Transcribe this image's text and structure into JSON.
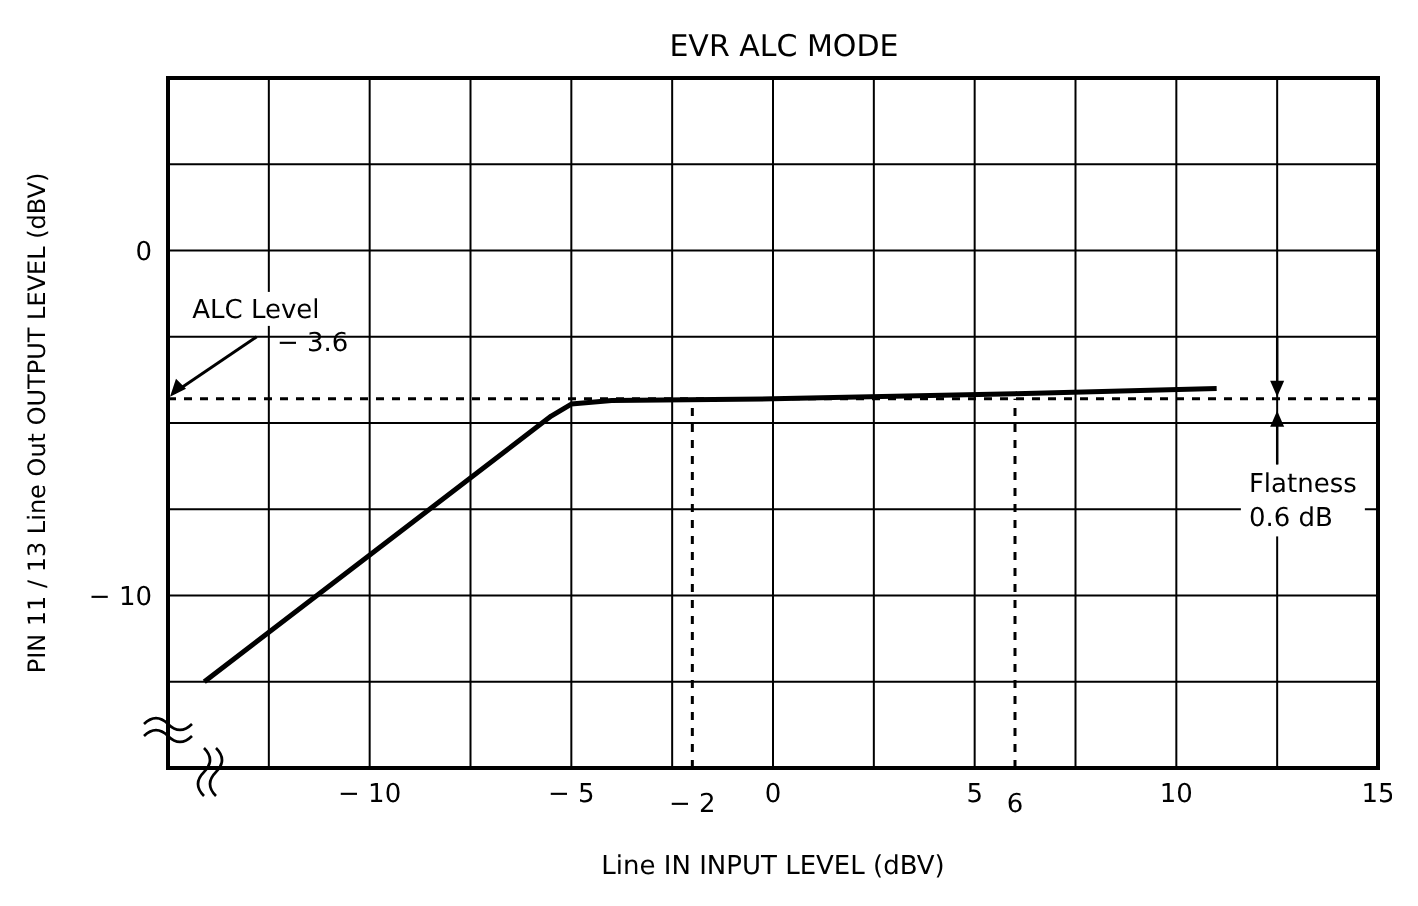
{
  "chart_data": {
    "type": "line",
    "title": "EVR ALC MODE",
    "xlabel": "Line IN INPUT LEVEL   (dBV)",
    "ylabel": "PIN 11 / 13 Line Out OUTPUT LEVEL   (dBV)",
    "x": [
      -14.1,
      -5.5,
      -5,
      -4,
      0,
      6,
      11
    ],
    "series": [
      {
        "color": "#000000",
        "values": [
          -12.5,
          -4.8,
          -4.45,
          -4.35,
          -4.3,
          -4.15,
          -4.0
        ]
      }
    ],
    "xlim": [
      -15,
      15
    ],
    "ylim": [
      -15,
      5
    ],
    "xticks": [
      {
        "value": -15,
        "label": null
      },
      {
        "value": -12.5,
        "label": null
      },
      {
        "value": -10,
        "label": "− 10"
      },
      {
        "value": -7.5,
        "label": null
      },
      {
        "value": -5,
        "label": "− 5"
      },
      {
        "value": -2.5,
        "label": null
      },
      0,
      {
        "value": 2.5,
        "label": null
      },
      5,
      {
        "value": 7.5,
        "label": null
      },
      10,
      {
        "value": 12.5,
        "label": null
      },
      15
    ],
    "yticks": [
      {
        "value": -15,
        "label": null
      },
      {
        "value": -12.5,
        "label": null
      },
      {
        "value": -10,
        "label": "− 10"
      },
      {
        "value": -7.5,
        "label": null
      },
      {
        "value": -5,
        "label": null
      },
      {
        "value": -2.5,
        "label": null
      },
      0,
      {
        "value": 2.5,
        "label": null
      },
      {
        "value": 5,
        "label": null
      }
    ],
    "grid": true,
    "marker": "none",
    "line_style": "solid",
    "ref_lines": [
      {
        "axis": "y",
        "value": -4.3,
        "line_style": "dashed",
        "color": "#000000"
      },
      {
        "axis": "x",
        "value": -2,
        "label": "− 2",
        "line_style": "dashed",
        "color": "#000000"
      },
      {
        "axis": "x",
        "value": 6,
        "label": "6",
        "line_style": "dashed",
        "color": "#000000"
      }
    ],
    "annotations": [
      {
        "text": "ALC Level",
        "x": -15,
        "y": -4.3
      },
      "− 3.6",
      {
        "text": "Flatness",
        "x": 12.5,
        "y": -4.3
      },
      "0.6 dB"
    ]
  }
}
